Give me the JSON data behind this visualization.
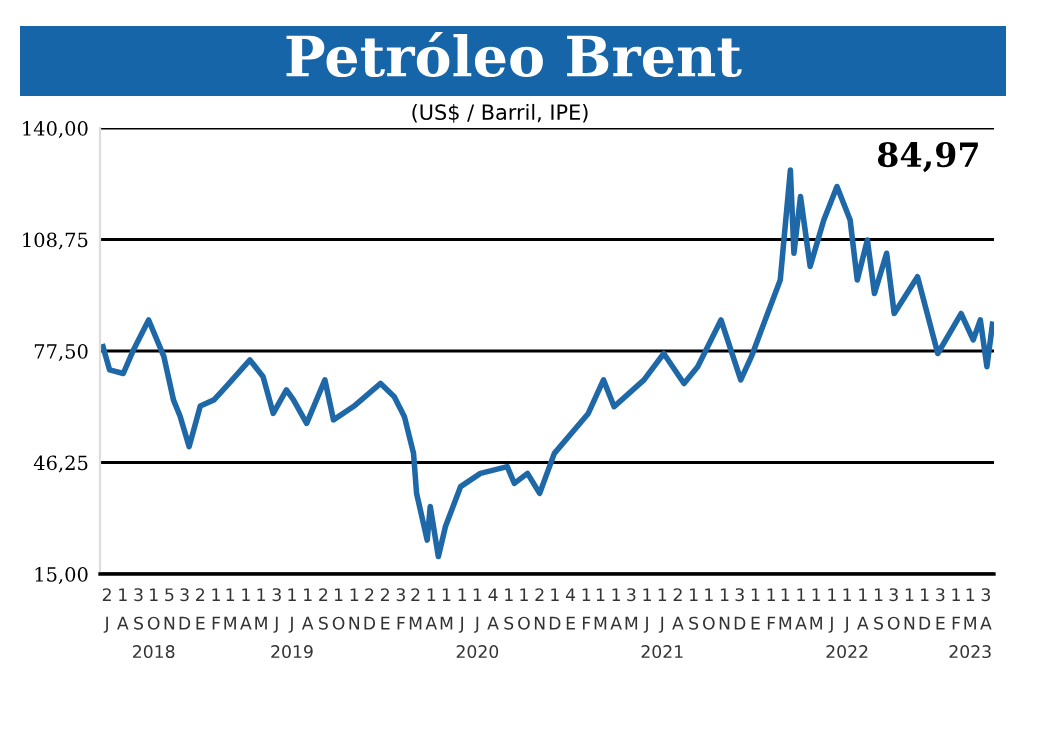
{
  "chart_data": {
    "type": "line",
    "title": "Petróleo Brent",
    "subtitle": "(US$ / Barril, IPE)",
    "annotations": [
      "84,97"
    ],
    "series": [
      {
        "color": "#1f68a8",
        "x": [
          "2018-07-07",
          "2018-07-20",
          "2018-08-16",
          "2018-09-05",
          "2018-10-05",
          "2018-11-04",
          "2018-11-23",
          "2018-12-06",
          "2018-12-24",
          "2019-01-15",
          "2019-02-11",
          "2019-03-07",
          "2019-04-23",
          "2019-05-19",
          "2019-06-08",
          "2019-07-04",
          "2019-07-18",
          "2019-08-13",
          "2019-09-18",
          "2019-10-05",
          "2019-11-14",
          "2020-01-06",
          "2020-02-02",
          "2020-02-22",
          "2020-03-11",
          "2020-03-17",
          "2020-04-07",
          "2020-04-13",
          "2020-04-29",
          "2020-05-13",
          "2020-06-12",
          "2020-07-21",
          "2020-09-12",
          "2020-09-26",
          "2020-10-22",
          "2020-11-15",
          "2020-12-14",
          "2021-02-19",
          "2021-03-21",
          "2021-04-11",
          "2021-06-09",
          "2021-07-18",
          "2021-08-27",
          "2021-09-23",
          "2021-11-08",
          "2021-12-17",
          "2022-01-07",
          "2022-03-05",
          "2022-03-25",
          "2022-04-01",
          "2022-04-14",
          "2022-05-03",
          "2022-05-30",
          "2022-06-25",
          "2022-07-21",
          "2022-08-04",
          "2022-08-24",
          "2022-09-07",
          "2022-10-01",
          "2022-10-16",
          "2022-12-01",
          "2023-01-10",
          "2023-02-25",
          "2023-03-21",
          "2023-04-04",
          "2023-04-17",
          "2023-04-28"
        ],
        "values": [
          78.7,
          72.2,
          71.2,
          77.8,
          86.2,
          76,
          63.8,
          59.3,
          50.7,
          62.1,
          63.8,
          67.5,
          75,
          70.3,
          60,
          66.6,
          63.8,
          57.2,
          69.4,
          58.2,
          62,
          68.4,
          64.7,
          59.1,
          48.8,
          37.6,
          24.5,
          33.9,
          19.9,
          28.3,
          39.5,
          43.2,
          45.1,
          40.4,
          43.2,
          37.6,
          48.8,
          60,
          69.4,
          61.9,
          69.4,
          76.8,
          68.4,
          73.1,
          86.2,
          69.4,
          75.9,
          97.4,
          128.2,
          104.9,
          120.8,
          101.2,
          114.2,
          123.6,
          114.2,
          97.4,
          108.6,
          93.6,
          104.9,
          88,
          98.3,
          76.8,
          88,
          80.6,
          86.2,
          73.1,
          85.0
        ]
      }
    ],
    "xlim": [
      "2018-07-01",
      "2023-05-01"
    ],
    "xticks": [
      {
        "value": "2018-07-15",
        "label": "2\nJ"
      },
      {
        "value": "2018-08-15",
        "label": "1\nA"
      },
      {
        "value": "2018-09-15",
        "label": "3\nS"
      },
      {
        "value": "2018-10-15",
        "label": "1\nO\n2018"
      },
      {
        "value": "2018-11-15",
        "label": "5\nN"
      },
      {
        "value": "2018-12-15",
        "label": "3\nD"
      },
      {
        "value": "2019-01-15",
        "label": "2\nE"
      },
      {
        "value": "2019-02-15",
        "label": "1\nF"
      },
      {
        "value": "2019-03-15",
        "label": "1\nM"
      },
      {
        "value": "2019-04-15",
        "label": "1\nA"
      },
      {
        "value": "2019-05-15",
        "label": "1\nM"
      },
      {
        "value": "2019-06-15",
        "label": "3\nJ"
      },
      {
        "value": "2019-07-15",
        "label": "1\nJ\n2019"
      },
      {
        "value": "2019-08-15",
        "label": "1\nA"
      },
      {
        "value": "2019-09-15",
        "label": "2\nS"
      },
      {
        "value": "2019-10-15",
        "label": "1\nO"
      },
      {
        "value": "2019-11-15",
        "label": "1\nN"
      },
      {
        "value": "2019-12-15",
        "label": "2\nD"
      },
      {
        "value": "2020-01-15",
        "label": "2\nE"
      },
      {
        "value": "2020-02-15",
        "label": "3\nF"
      },
      {
        "value": "2020-03-15",
        "label": "2\nM"
      },
      {
        "value": "2020-04-15",
        "label": "1\nA"
      },
      {
        "value": "2020-05-15",
        "label": "1\nM"
      },
      {
        "value": "2020-06-15",
        "label": "1\nJ"
      },
      {
        "value": "2020-07-15",
        "label": "1\nJ\n2020"
      },
      {
        "value": "2020-08-15",
        "label": "4\nA"
      },
      {
        "value": "2020-09-15",
        "label": "1\nS"
      },
      {
        "value": "2020-10-15",
        "label": "1\nO"
      },
      {
        "value": "2020-11-15",
        "label": "2\nN"
      },
      {
        "value": "2020-12-15",
        "label": "1\nD"
      },
      {
        "value": "2021-01-15",
        "label": "4\nE"
      },
      {
        "value": "2021-02-15",
        "label": "1\nF"
      },
      {
        "value": "2021-03-15",
        "label": "1\nM"
      },
      {
        "value": "2021-04-15",
        "label": "1\nA"
      },
      {
        "value": "2021-05-15",
        "label": "3\nM"
      },
      {
        "value": "2021-06-15",
        "label": "1\nJ"
      },
      {
        "value": "2021-07-15",
        "label": "1\nJ\n2021"
      },
      {
        "value": "2021-08-15",
        "label": "2\nA"
      },
      {
        "value": "2021-09-15",
        "label": "1\nS"
      },
      {
        "value": "2021-10-15",
        "label": "1\nO"
      },
      {
        "value": "2021-11-15",
        "label": "1\nN"
      },
      {
        "value": "2021-12-15",
        "label": "3\nD"
      },
      {
        "value": "2022-01-15",
        "label": "1\nE"
      },
      {
        "value": "2022-02-15",
        "label": "1\nF"
      },
      {
        "value": "2022-03-15",
        "label": "1\nM"
      },
      {
        "value": "2022-04-15",
        "label": "1\nA"
      },
      {
        "value": "2022-05-15",
        "label": "1\nM"
      },
      {
        "value": "2022-06-15",
        "label": "1\nJ"
      },
      {
        "value": "2022-07-15",
        "label": "1\nJ\n2022"
      },
      {
        "value": "2022-08-15",
        "label": "1\nA"
      },
      {
        "value": "2022-09-15",
        "label": "1\nS"
      },
      {
        "value": "2022-10-15",
        "label": "3\nO"
      },
      {
        "value": "2022-11-15",
        "label": "1\nN"
      },
      {
        "value": "2022-12-15",
        "label": "1\nD"
      },
      {
        "value": "2023-01-15",
        "label": "3\nE"
      },
      {
        "value": "2023-02-15",
        "label": "1\nF"
      },
      {
        "value": "2023-03-15",
        "label": "1\nM\n2023"
      },
      {
        "value": "2023-04-15",
        "label": "3\nA"
      }
    ],
    "ylim": [
      15,
      140
    ],
    "yticks": [
      {
        "value": 15,
        "label": "15,00"
      },
      {
        "value": 46.25,
        "label": "46,25"
      },
      {
        "value": 77.5,
        "label": "77,50"
      },
      {
        "value": 108.75,
        "label": "108,75"
      },
      {
        "value": 140,
        "label": "140,00"
      }
    ],
    "grid": "y",
    "legend": false,
    "marker": "none",
    "line_style": "solid"
  }
}
